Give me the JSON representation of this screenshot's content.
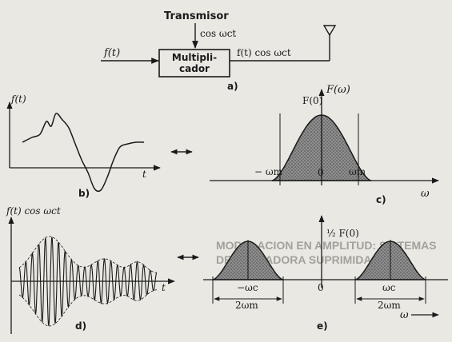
{
  "block_a": {
    "transmitter": "Transmisor",
    "carrier_label": "cos ωct",
    "input_label": "f(t)",
    "modulator_line1": "Multipli-",
    "modulator_line2": "cador",
    "output_label": "f(t) cos ωct",
    "panel": "a)"
  },
  "panel_b": {
    "y_label": "f(t)",
    "t_axis": "t",
    "panel": "b)"
  },
  "panel_c": {
    "title": "F(ω)",
    "peak": "F(0)",
    "neg_band": "− ωm",
    "zero": "0",
    "pos_band": "ωm",
    "omega_axis": "ω",
    "panel": "c)"
  },
  "panel_d": {
    "y_label": "f(t) cos ωct",
    "t_axis": "t",
    "panel": "d)"
  },
  "panel_e": {
    "half_peak": "½ F(0)",
    "neg_center": "−ωc",
    "zero": "0",
    "pos_center": "ωc",
    "bw_left": "2ωm",
    "bw_right": "2ωm",
    "omega_axis": "ω",
    "panel": "e)"
  },
  "background_text": {
    "heading_line1": "MODULACION EN AMPLITUD: SISTEMAS",
    "heading_line2": "DE PORTADORA SUPRIMIDA"
  }
}
